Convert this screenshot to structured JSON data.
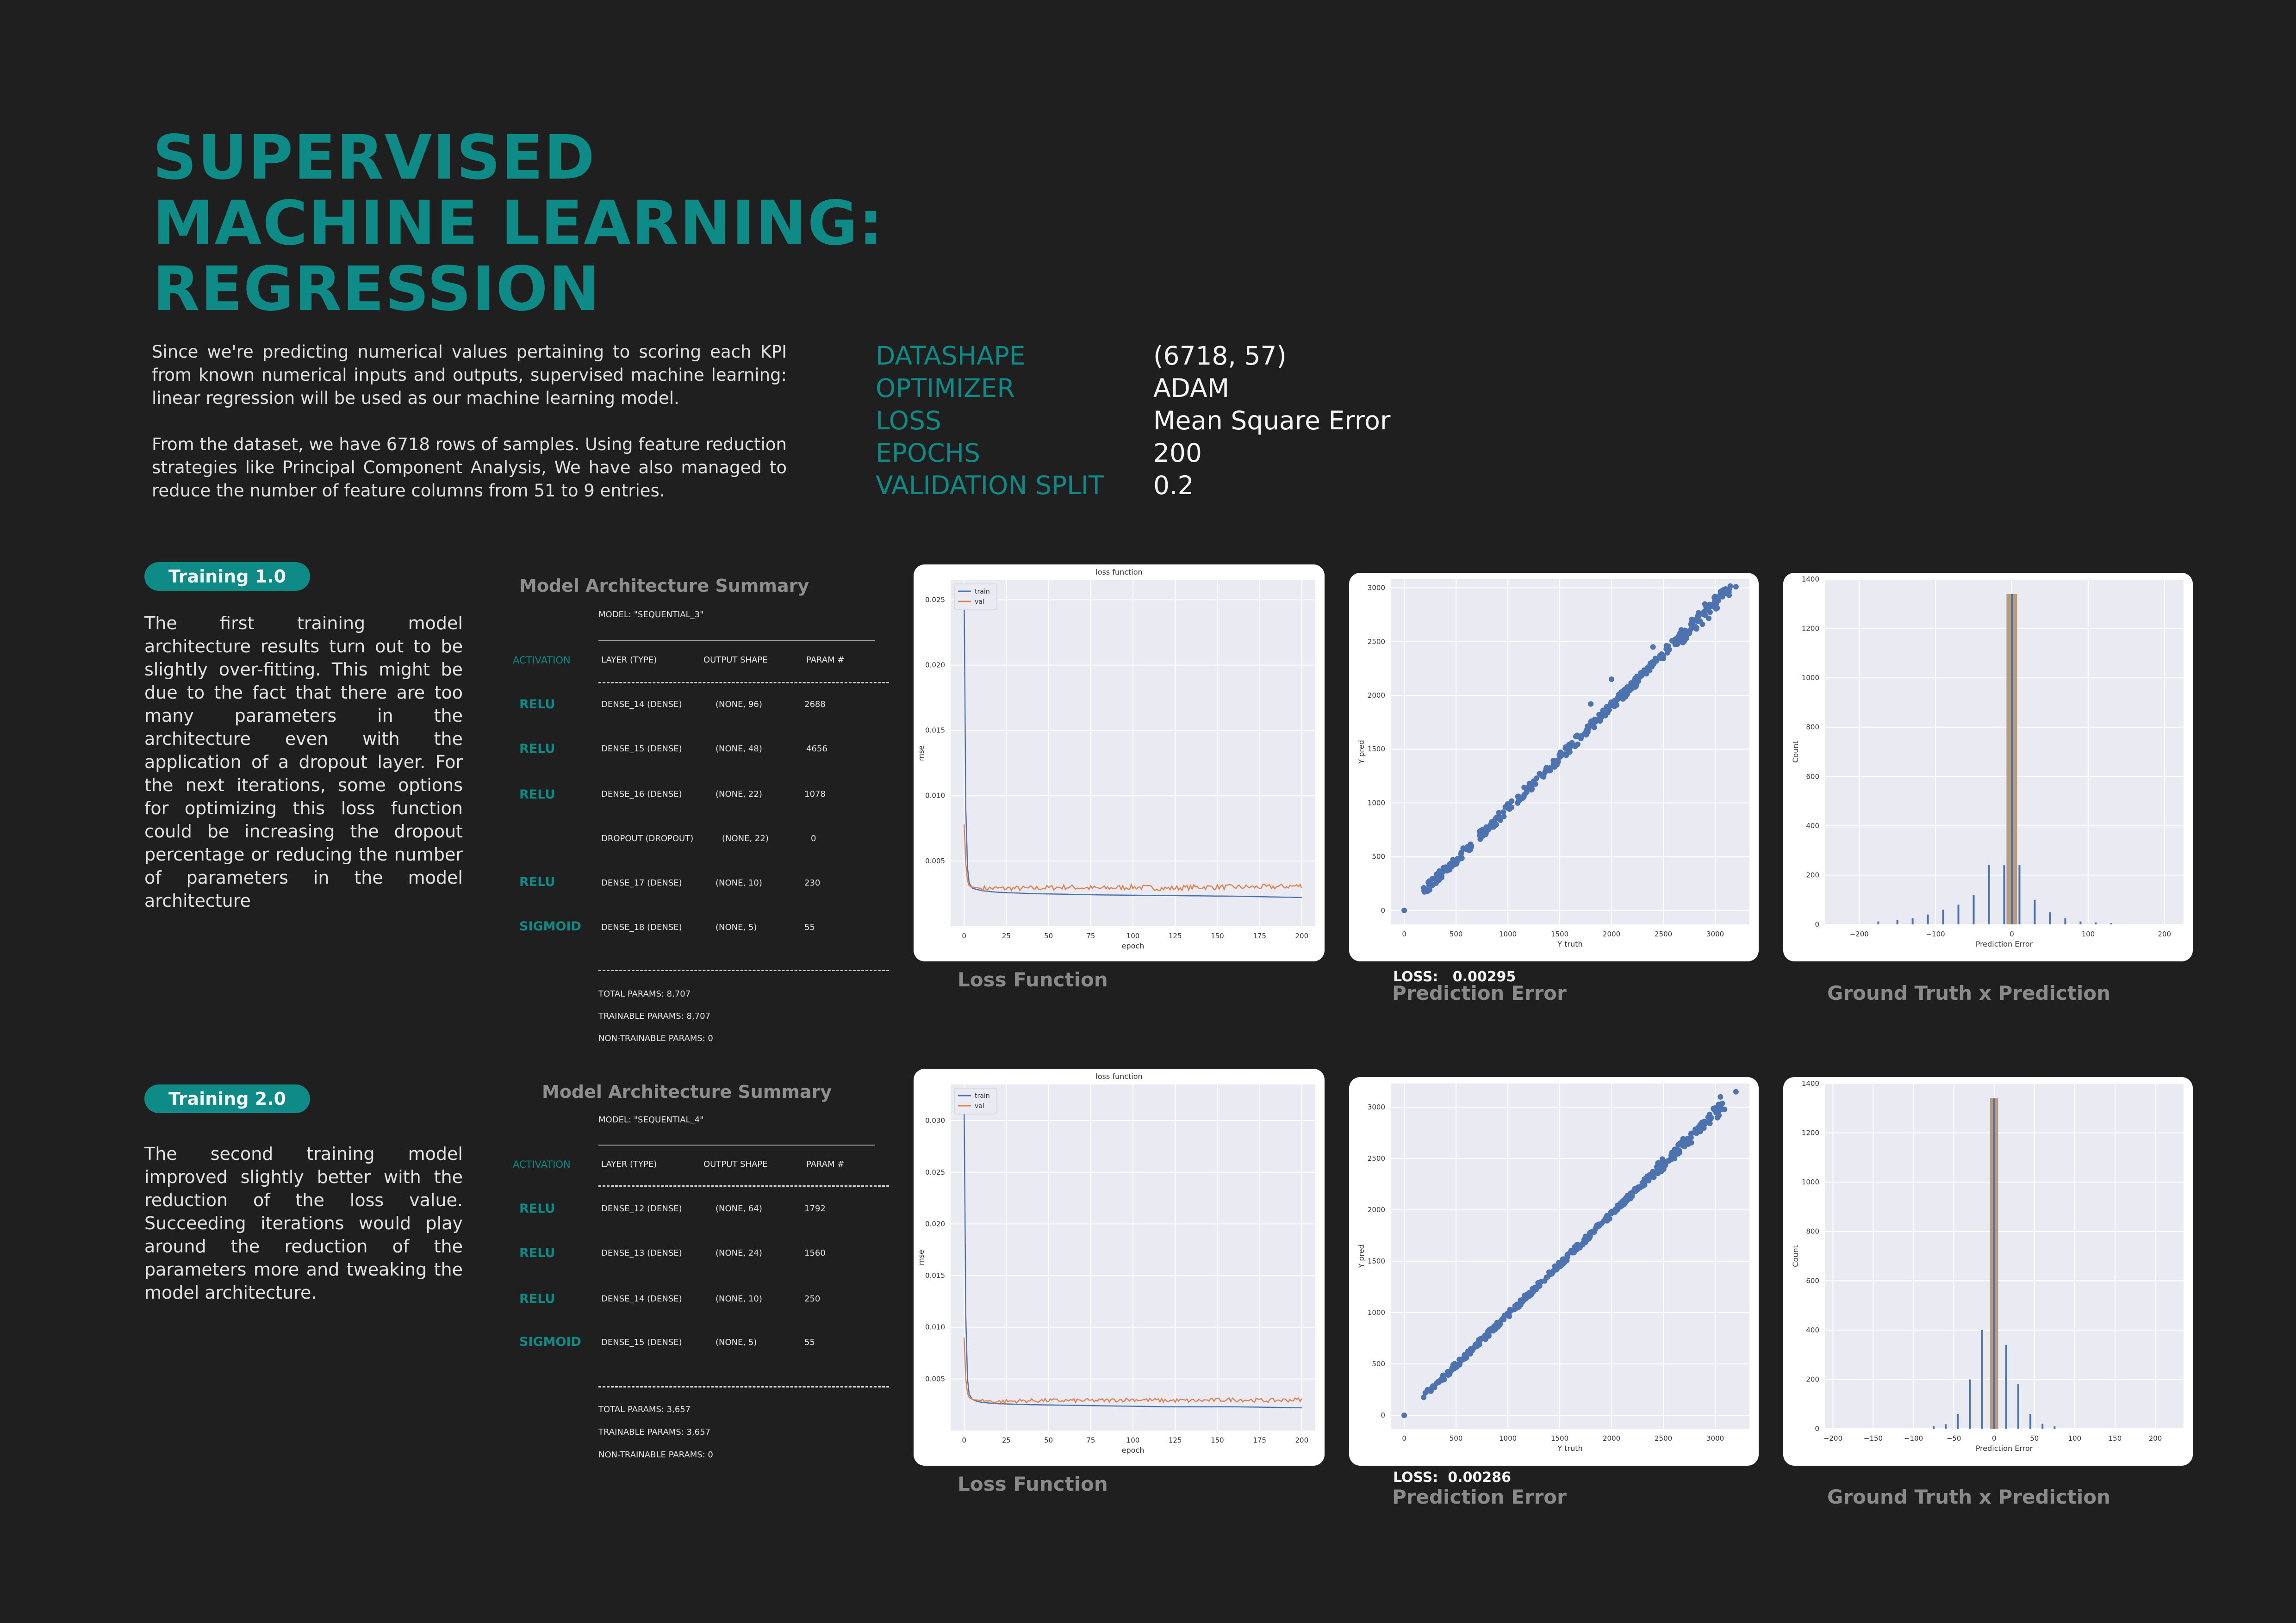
{
  "header": {
    "title_lines": [
      "SUPERVISED",
      "MACHINE LEARNING:",
      "REGRESSION"
    ],
    "intro_paragraphs": [
      "Since we're predicting numerical values pertaining to scoring each KPI from known numerical inputs and outputs, supervised machine learning: linear regression will be used as our machine learning model.",
      "From the dataset, we have 6718 rows of samples. Using feature reduction strategies like Principal Component Analysis, We have also managed to reduce the number of feature columns from 51 to 9 entries."
    ]
  },
  "params": [
    {
      "key": "DATASHAPE",
      "value": "(6718, 57)"
    },
    {
      "key": "OPTIMIZER",
      "value": "ADAM"
    },
    {
      "key": "LOSS",
      "value": "Mean Square Error"
    },
    {
      "key": "EPOCHS",
      "value": "200"
    },
    {
      "key": "VALIDATION SPLIT",
      "value": "0.2"
    }
  ],
  "colors": {
    "accent": "#0e8a87",
    "background": "#1f1f20",
    "train": "#4c72b0",
    "val": "#dd8452",
    "hist_bar": "#b2926f"
  },
  "trainings": [
    {
      "label": "Training 1.0",
      "description": "The first training model architecture results turn out to be slightly over-fitting. This might be due to the fact that there are too many parameters in the architecture even with the application of a dropout layer. For the next iterations, some options for optimizing this loss function could be increasing the dropout percentage or reducing the number of parameters in the model architecture",
      "arch_title": "Model Architecture Summary",
      "model_name": "MODEL: \"SEQUENTIAL_3\"",
      "activation_header": "ACTIVATION",
      "col_headers": [
        "LAYER (TYPE)",
        "OUTPUT SHAPE",
        "PARAM #"
      ],
      "layers": [
        {
          "activation": "RELU",
          "layer": "DENSE_14 (DENSE)",
          "shape": "(NONE, 96)",
          "params": "2688"
        },
        {
          "activation": "RELU",
          "layer": "DENSE_15 (DENSE)",
          "shape": "(NONE, 48)",
          "params": "4656"
        },
        {
          "activation": "RELU",
          "layer": "DENSE_16 (DENSE)",
          "shape": "(NONE, 22)",
          "params": "1078"
        },
        {
          "activation": "",
          "layer": "DROPOUT (DROPOUT)",
          "shape": "(NONE, 22)",
          "params": "0"
        },
        {
          "activation": "RELU",
          "layer": "DENSE_17 (DENSE)",
          "shape": "(NONE, 10)",
          "params": "230"
        },
        {
          "activation": "SIGMOID",
          "layer": "DENSE_18 (DENSE)",
          "shape": "(NONE, 5)",
          "params": "55"
        }
      ],
      "totals": [
        "TOTAL PARAMS: 8,707",
        "TRAINABLE PARAMS: 8,707",
        "NON-TRAINABLE PARAMS: 0"
      ],
      "loss_caption": "Loss Function",
      "pred_caption": "Prediction Error",
      "hist_caption": "Ground Truth x Prediction",
      "loss_label": "LOSS:",
      "loss_value": "0.00295"
    },
    {
      "label": "Training 2.0",
      "description": "The second training model improved slightly better with the reduction of the loss value. Succeeding iterations would play around the reduction of the parameters more and tweaking the model architecture.",
      "arch_title": "Model Architecture Summary",
      "model_name": "MODEL: \"SEQUENTIAL_4\"",
      "activation_header": "ACTIVATION",
      "col_headers": [
        "LAYER (TYPE)",
        "OUTPUT SHAPE",
        "PARAM #"
      ],
      "layers": [
        {
          "activation": "RELU",
          "layer": "DENSE_12 (DENSE)",
          "shape": "(NONE, 64)",
          "params": "1792"
        },
        {
          "activation": "RELU",
          "layer": "DENSE_13 (DENSE)",
          "shape": "(NONE, 24)",
          "params": "1560"
        },
        {
          "activation": "RELU",
          "layer": "DENSE_14 (DENSE)",
          "shape": "(NONE, 10)",
          "params": "250"
        },
        {
          "activation": "SIGMOID",
          "layer": "DENSE_15 (DENSE)",
          "shape": "(NONE, 5)",
          "params": "55"
        }
      ],
      "totals": [
        "TOTAL PARAMS: 3,657",
        "TRAINABLE PARAMS: 3,657",
        "NON-TRAINABLE PARAMS: 0"
      ],
      "loss_caption": "Loss Function",
      "pred_caption": "Prediction Error",
      "hist_caption": "Ground Truth x Prediction",
      "loss_label": "LOSS:",
      "loss_value": "0.00286"
    }
  ],
  "chart_data": [
    {
      "type": "line",
      "title": "loss function",
      "xlabel": "epoch",
      "ylabel": "mse",
      "xlim": [
        -8,
        208
      ],
      "ylim": [
        0,
        0.0265
      ],
      "xticks": [
        0,
        25,
        50,
        75,
        100,
        125,
        150,
        175,
        200
      ],
      "yticks": [
        0.005,
        0.01,
        0.015,
        0.02,
        0.025
      ],
      "legend": "top-left",
      "grid": true,
      "series": [
        {
          "name": "train",
          "x": [
            0,
            1,
            2,
            3,
            5,
            8,
            12,
            20,
            40,
            80,
            120,
            160,
            200
          ],
          "y": [
            0.0255,
            0.009,
            0.0045,
            0.0033,
            0.0029,
            0.0028,
            0.0027,
            0.0026,
            0.0025,
            0.0024,
            0.00235,
            0.0023,
            0.0022
          ]
        },
        {
          "name": "val",
          "x": [
            0,
            1,
            2,
            3,
            5,
            10,
            20,
            40,
            60,
            80,
            100,
            120,
            140,
            160,
            180,
            200
          ],
          "y": [
            0.0078,
            0.0048,
            0.0035,
            0.0031,
            0.003,
            0.0029,
            0.0029,
            0.0029,
            0.003,
            0.0029,
            0.003,
            0.0029,
            0.003,
            0.003,
            0.003,
            0.0031
          ]
        }
      ]
    },
    {
      "type": "scatter",
      "xlabel": "Y truth",
      "ylabel": "Y pred",
      "xlim": [
        -130,
        3330
      ],
      "ylim": [
        -130,
        3080
      ],
      "xticks": [
        0,
        500,
        1000,
        1500,
        2000,
        2500,
        3000
      ],
      "yticks": [
        0,
        500,
        1000,
        1500,
        2000,
        2500,
        3000
      ],
      "grid": true,
      "trend": {
        "x_range": [
          180,
          3150
        ],
        "slope": 0.95,
        "spread": 45,
        "points": 420
      },
      "extra_points": [
        [
          0,
          0
        ],
        [
          1800,
          1920
        ],
        [
          2000,
          2150
        ],
        [
          2400,
          2450
        ],
        [
          2900,
          2850
        ],
        [
          3200,
          3010
        ]
      ]
    },
    {
      "type": "bar",
      "xlabel": "Prediction Error",
      "ylabel": "Count",
      "xlim": [
        -245,
        225
      ],
      "ylim": [
        0,
        1400
      ],
      "xticks": [
        -200,
        -100,
        0,
        100,
        200
      ],
      "yticks": [
        0,
        200,
        400,
        600,
        800,
        1000,
        1200,
        1400
      ],
      "grid": true,
      "bars": [
        [
          -175,
          12
        ],
        [
          -150,
          18
        ],
        [
          -130,
          25
        ],
        [
          -110,
          40
        ],
        [
          -90,
          60
        ],
        [
          -70,
          80
        ],
        [
          -50,
          120
        ],
        [
          -30,
          240
        ],
        [
          -10,
          240
        ],
        [
          0,
          1340
        ],
        [
          10,
          240
        ],
        [
          30,
          100
        ],
        [
          50,
          50
        ],
        [
          70,
          25
        ],
        [
          90,
          12
        ],
        [
          110,
          8
        ],
        [
          130,
          5
        ]
      ],
      "wide_bar": {
        "x": 0,
        "width": 14,
        "value": 1340
      }
    },
    {
      "type": "line",
      "title": "loss function",
      "xlabel": "epoch",
      "ylabel": "mse",
      "xlim": [
        -8,
        208
      ],
      "ylim": [
        0,
        0.0335
      ],
      "xticks": [
        0,
        25,
        50,
        75,
        100,
        125,
        150,
        175,
        200
      ],
      "yticks": [
        0.005,
        0.01,
        0.015,
        0.02,
        0.025,
        0.03
      ],
      "legend": "top-left",
      "grid": true,
      "series": [
        {
          "name": "train",
          "x": [
            0,
            1,
            2,
            3,
            5,
            8,
            12,
            20,
            40,
            80,
            120,
            160,
            200
          ],
          "y": [
            0.0315,
            0.011,
            0.005,
            0.0035,
            0.003,
            0.0028,
            0.0027,
            0.0026,
            0.0025,
            0.0024,
            0.0023,
            0.0023,
            0.0022
          ]
        },
        {
          "name": "val",
          "x": [
            0,
            1,
            2,
            3,
            5,
            10,
            20,
            40,
            60,
            80,
            100,
            120,
            140,
            160,
            180,
            200
          ],
          "y": [
            0.009,
            0.005,
            0.0036,
            0.0032,
            0.003,
            0.0029,
            0.0028,
            0.0029,
            0.0029,
            0.0029,
            0.003,
            0.0029,
            0.0029,
            0.003,
            0.0029,
            0.003
          ]
        }
      ]
    },
    {
      "type": "scatter",
      "xlabel": "Y truth",
      "ylabel": "Y pred",
      "xlim": [
        -130,
        3330
      ],
      "ylim": [
        -130,
        3230
      ],
      "xticks": [
        0,
        500,
        1000,
        1500,
        2000,
        2500,
        3000
      ],
      "yticks": [
        0,
        500,
        1000,
        1500,
        2000,
        2500,
        3000
      ],
      "grid": true,
      "trend": {
        "x_range": [
          180,
          3100
        ],
        "slope": 0.98,
        "spread": 30,
        "points": 420
      },
      "extra_points": [
        [
          0,
          0
        ],
        [
          3200,
          3150
        ],
        [
          3050,
          3100
        ]
      ]
    },
    {
      "type": "bar",
      "xlabel": "Prediction Error",
      "ylabel": "Count",
      "xlim": [
        -210,
        235
      ],
      "ylim": [
        0,
        1400
      ],
      "xticks": [
        -200,
        -150,
        -100,
        -50,
        0,
        50,
        100,
        150,
        200
      ],
      "yticks": [
        0,
        200,
        400,
        600,
        800,
        1000,
        1200,
        1400
      ],
      "grid": true,
      "bars": [
        [
          -75,
          10
        ],
        [
          -60,
          18
        ],
        [
          -45,
          60
        ],
        [
          -30,
          200
        ],
        [
          -15,
          400
        ],
        [
          0,
          1340
        ],
        [
          15,
          340
        ],
        [
          30,
          180
        ],
        [
          45,
          60
        ],
        [
          60,
          20
        ],
        [
          75,
          10
        ]
      ],
      "wide_bar": {
        "x": 0,
        "width": 10,
        "value": 1340
      }
    }
  ]
}
